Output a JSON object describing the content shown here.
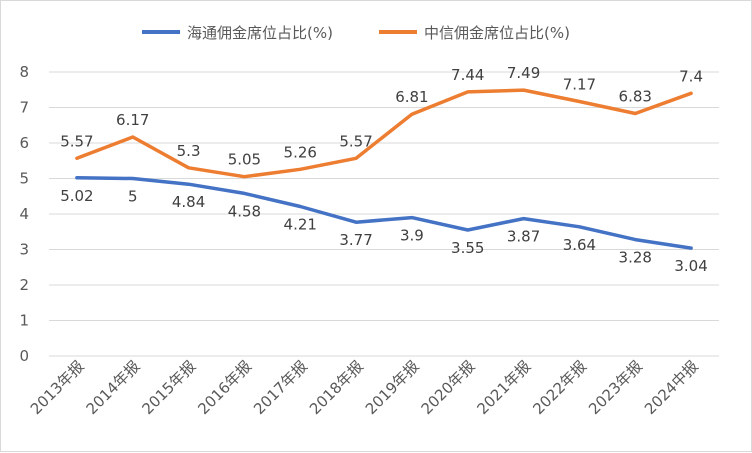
{
  "chart_data": {
    "type": "line",
    "categories": [
      "2013年报",
      "2014年报",
      "2015年报",
      "2016年报",
      "2017年报",
      "2018年报",
      "2019年报",
      "2020年报",
      "2021年报",
      "2022年报",
      "2023年报",
      "2024中报"
    ],
    "series": [
      {
        "name": "海通佣金席位占比(%)",
        "color": "#4472c4",
        "values": [
          5.02,
          5,
          4.84,
          4.58,
          4.21,
          3.77,
          3.9,
          3.55,
          3.87,
          3.64,
          3.28,
          3.04
        ],
        "label_position": "below"
      },
      {
        "name": "中信佣金席位占比(%)",
        "color": "#ed7d31",
        "values": [
          5.57,
          6.17,
          5.3,
          5.05,
          5.26,
          5.57,
          6.81,
          7.44,
          7.49,
          7.17,
          6.83,
          7.4
        ],
        "label_position": "above"
      }
    ],
    "y_ticks": [
      0,
      1,
      2,
      3,
      4,
      5,
      6,
      7,
      8
    ],
    "ylim": [
      0,
      8
    ],
    "grid": true,
    "legend": "top"
  }
}
